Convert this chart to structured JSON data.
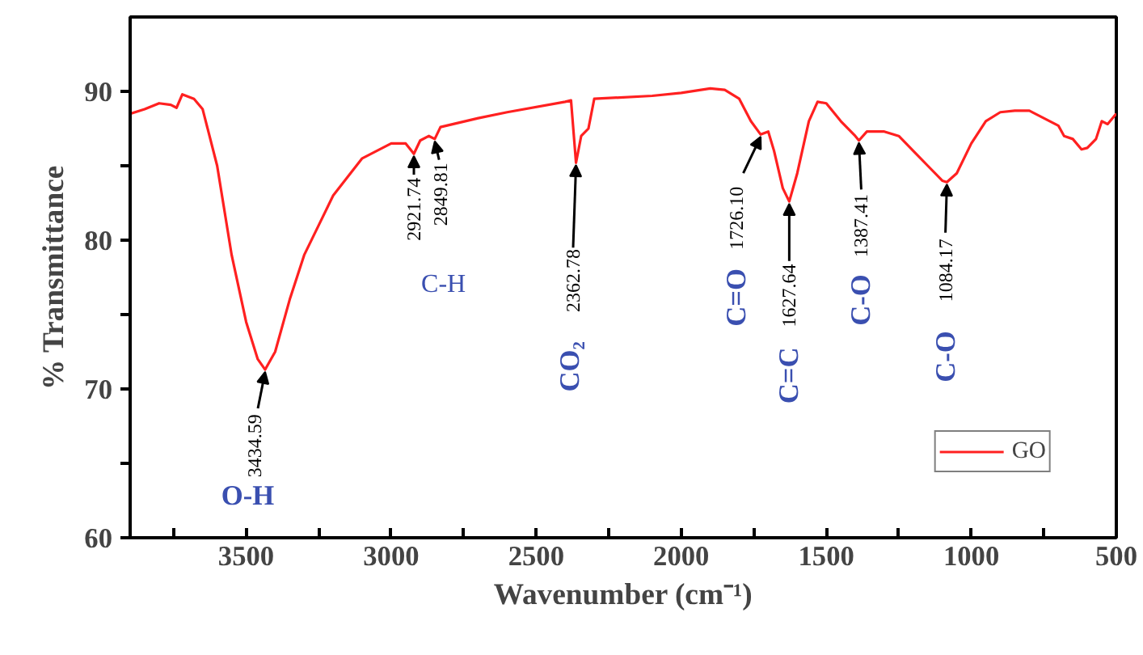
{
  "chart_data": {
    "type": "line",
    "xlabel": "Wavenumber (cm⁻¹)",
    "ylabel": "% Transmittance",
    "xlim": [
      3900,
      500
    ],
    "ylim": [
      60,
      95
    ],
    "xticks": [
      {
        "value": 3750,
        "label": null
      },
      3500,
      {
        "value": 3250,
        "label": null
      },
      3000,
      {
        "value": 2750,
        "label": null
      },
      2500,
      {
        "value": 2250,
        "label": null
      },
      2000,
      {
        "value": 1750,
        "label": null
      },
      1500,
      {
        "value": 1250,
        "label": null
      },
      1000,
      {
        "value": 750,
        "label": null
      },
      500
    ],
    "yticks": [
      60,
      {
        "value": 65,
        "label": null
      },
      70,
      {
        "value": 75,
        "label": null
      },
      80,
      {
        "value": 85,
        "label": null
      },
      90
    ],
    "grid": false,
    "legend": "bottom right",
    "marker": "none",
    "line_style": "solid",
    "series": [
      {
        "name": "GO",
        "color": "#ff2020",
        "x": [
          3900,
          3850,
          3800,
          3760,
          3740,
          3720,
          3680,
          3650,
          3600,
          3550,
          3500,
          3460,
          3434.59,
          3400,
          3350,
          3300,
          3250,
          3200,
          3100,
          3000,
          2950,
          2921.74,
          2900,
          2870,
          2849.81,
          2830,
          2700,
          2600,
          2400,
          2380,
          2362.78,
          2345,
          2320,
          2300,
          2100,
          2000,
          1900,
          1850,
          1800,
          1760,
          1726.1,
          1700,
          1680,
          1650,
          1627.64,
          1600,
          1560,
          1530,
          1500,
          1450,
          1400,
          1387.41,
          1360,
          1300,
          1250,
          1200,
          1150,
          1100,
          1084.17,
          1050,
          1000,
          950,
          900,
          850,
          800,
          750,
          700,
          680,
          650,
          620,
          600,
          570,
          550,
          530,
          500
        ],
        "values": [
          88.5,
          88.8,
          89.2,
          89.1,
          88.9,
          89.8,
          89.5,
          88.8,
          85,
          79,
          74.5,
          72,
          71.3,
          72.5,
          76,
          79,
          81,
          83,
          85.5,
          86.5,
          86.5,
          85.8,
          86.7,
          87,
          86.8,
          87.6,
          88.2,
          88.6,
          89.3,
          89.4,
          85.2,
          87,
          87.5,
          89.5,
          89.7,
          89.9,
          90.2,
          90.1,
          89.5,
          88,
          87.1,
          87.3,
          86,
          83.5,
          82.6,
          84.5,
          88,
          89.3,
          89.2,
          88,
          87,
          86.7,
          87.3,
          87.3,
          87,
          86,
          85,
          84,
          83.9,
          84.5,
          86.5,
          88,
          88.6,
          88.7,
          88.7,
          88.2,
          87.7,
          87,
          86.8,
          86.1,
          86.2,
          86.8,
          88,
          87.8,
          88.5
        ]
      }
    ],
    "annotations": [
      {
        "text": "3434.59",
        "x": 3434.59,
        "y": 71.3
      },
      "O-H",
      {
        "text": "2921.74",
        "x": 2921.74,
        "y": 85.8
      },
      {
        "text": "2849.81",
        "x": 2849.81,
        "y": 86.8
      },
      "C-H",
      {
        "text": "2362.78",
        "x": 2362.78,
        "y": 85.2
      },
      "CO₂",
      {
        "text": "1726.10",
        "x": 1726.1,
        "y": 87.1
      },
      "C=O",
      {
        "text": "1627.64",
        "x": 1627.64,
        "y": 82.6
      },
      "C=C",
      {
        "text": "1387.41",
        "x": 1387.41,
        "y": 86.7
      },
      "C-O",
      {
        "text": "1084.17",
        "x": 1084.17,
        "y": 83.9
      },
      "C-O"
    ]
  }
}
